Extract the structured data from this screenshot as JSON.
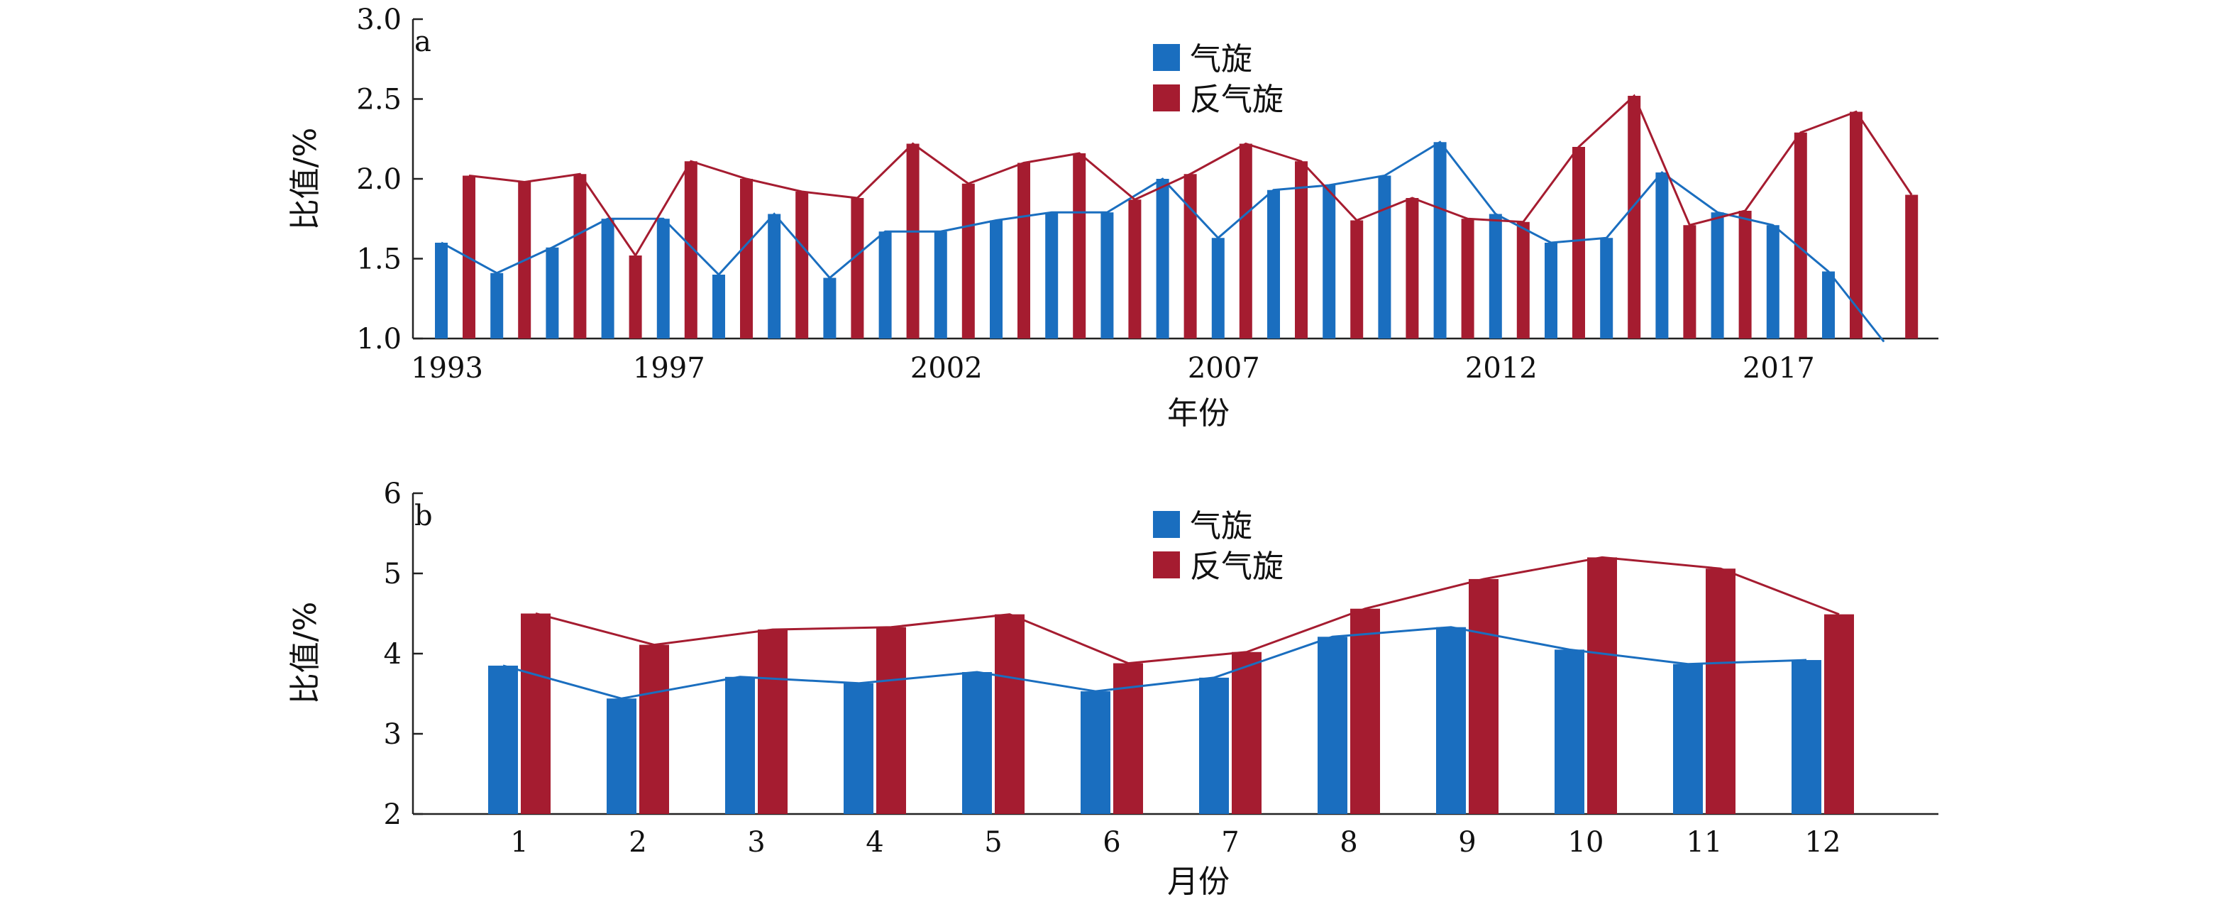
{
  "chart_data": [
    {
      "type": "bar",
      "panel_label": "a",
      "xlabel": "年份",
      "ylabel": "比值/%",
      "ylim": [
        1.0,
        3.0
      ],
      "yticks": [
        "1.0",
        "1.5",
        "2.0",
        "2.5",
        "3.0"
      ],
      "x": [
        1993,
        1994,
        1995,
        1996,
        1997,
        1998,
        1999,
        2000,
        2001,
        2002,
        2003,
        2004,
        2005,
        2006,
        2007,
        2008,
        2009,
        2010,
        2011,
        2012,
        2013,
        2014,
        2015,
        2016,
        2017,
        2018,
        2019
      ],
      "xtick_labels": [
        "1993",
        "1997",
        "2002",
        "2007",
        "2012",
        "2017"
      ],
      "series": [
        {
          "name": "气旋",
          "color": "#1a6ebf",
          "values": [
            1.6,
            1.41,
            1.57,
            1.75,
            1.75,
            1.4,
            1.78,
            1.38,
            1.67,
            1.67,
            1.74,
            1.79,
            1.79,
            2.0,
            1.63,
            1.93,
            1.96,
            2.02,
            2.23,
            1.78,
            1.6,
            1.63,
            2.04,
            1.79,
            1.71,
            1.42,
            0.98
          ]
        },
        {
          "name": "反气旋",
          "color": "#a51c30",
          "values": [
            2.02,
            1.98,
            2.03,
            1.52,
            2.11,
            2.0,
            1.92,
            1.88,
            2.22,
            1.97,
            2.1,
            2.16,
            1.87,
            2.03,
            2.22,
            2.11,
            1.74,
            1.88,
            1.75,
            1.73,
            2.2,
            2.52,
            1.71,
            1.8,
            2.29,
            2.42,
            1.9
          ]
        }
      ],
      "legend_position": "top-center"
    },
    {
      "type": "bar",
      "panel_label": "b",
      "xlabel": "月份",
      "ylabel": "比值/%",
      "ylim": [
        2,
        6
      ],
      "yticks": [
        "2",
        "3",
        "4",
        "5",
        "6"
      ],
      "categories": [
        "1",
        "2",
        "3",
        "4",
        "5",
        "6",
        "7",
        "8",
        "9",
        "10",
        "11",
        "12"
      ],
      "series": [
        {
          "name": "气旋",
          "color": "#1a6ebf",
          "values": [
            3.85,
            3.44,
            3.71,
            3.63,
            3.77,
            3.53,
            3.7,
            4.21,
            4.33,
            4.05,
            3.87,
            3.92
          ]
        },
        {
          "name": "反气旋",
          "color": "#a51c30",
          "values": [
            4.5,
            4.11,
            4.3,
            4.33,
            4.49,
            3.88,
            4.02,
            4.56,
            4.93,
            5.2,
            5.06,
            4.49
          ]
        }
      ],
      "legend_position": "top-center"
    }
  ]
}
